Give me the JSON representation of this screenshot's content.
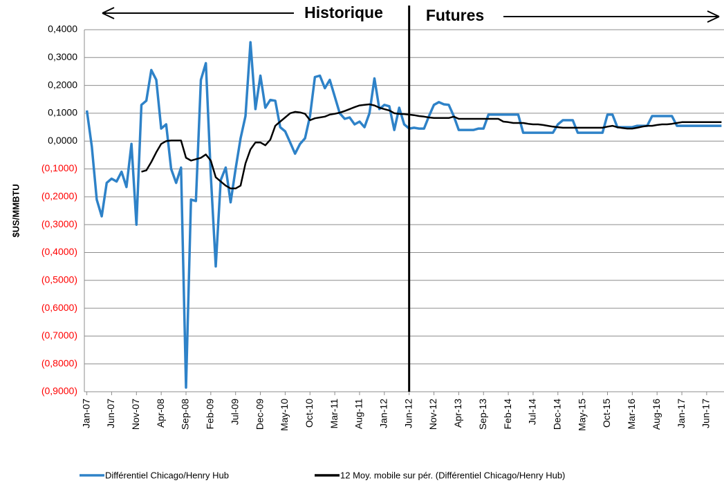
{
  "chart_data": {
    "type": "line",
    "y_label": "$US/MMBTU",
    "annotations": [
      "Historique",
      "Futures"
    ],
    "divider_category": "Jun-12",
    "negative_tick_color": "#ff0000",
    "grid": true,
    "legend": "bottom",
    "categories": [
      "Jan-07",
      null,
      null,
      null,
      null,
      "Jun-07",
      null,
      null,
      null,
      null,
      "Nov-07",
      null,
      null,
      null,
      null,
      "Apr-08",
      null,
      null,
      null,
      null,
      "Sep-08",
      null,
      null,
      null,
      null,
      "Feb-09",
      null,
      null,
      null,
      null,
      "Jul-09",
      null,
      null,
      null,
      null,
      "Dec-09",
      null,
      null,
      null,
      null,
      "May-10",
      null,
      null,
      null,
      null,
      "Oct-10",
      null,
      null,
      null,
      null,
      "Mar-11",
      null,
      null,
      null,
      null,
      "Aug-11",
      null,
      null,
      null,
      null,
      "Jan-12",
      null,
      null,
      null,
      null,
      "Jun-12",
      null,
      null,
      null,
      null,
      "Nov-12",
      null,
      null,
      null,
      null,
      "Apr-13",
      null,
      null,
      null,
      null,
      "Sep-13",
      null,
      null,
      null,
      null,
      "Feb-14",
      null,
      null,
      null,
      null,
      "Jul-14",
      null,
      null,
      null,
      null,
      "Dec-14",
      null,
      null,
      null,
      null,
      "May-15",
      null,
      null,
      null,
      null,
      "Oct-15",
      null,
      null,
      null,
      null,
      "Mar-16",
      null,
      null,
      null,
      null,
      "Aug-16",
      null,
      null,
      null,
      null,
      "Jan-17",
      null,
      null,
      null,
      null,
      "Jun-17",
      null,
      null,
      null
    ],
    "series": [
      {
        "name": "Différentiel Chicago/Henry Hub",
        "color": "#2e82c8",
        "width": 3.5,
        "values": [
          0.11,
          -0.02,
          -0.21,
          -0.27,
          -0.15,
          -0.135,
          -0.145,
          -0.11,
          -0.165,
          -0.01,
          -0.3,
          0.13,
          0.145,
          0.255,
          0.22,
          0.045,
          0.06,
          -0.1,
          -0.15,
          -0.095,
          -0.885,
          -0.21,
          -0.215,
          0.22,
          0.28,
          -0.12,
          -0.45,
          -0.14,
          -0.095,
          -0.22,
          -0.1,
          0.01,
          0.09,
          0.355,
          0.115,
          0.235,
          0.12,
          0.148,
          0.145,
          0.05,
          0.035,
          -0.005,
          -0.045,
          -0.01,
          0.01,
          0.09,
          0.23,
          0.235,
          0.19,
          0.22,
          0.16,
          0.1,
          0.08,
          0.085,
          0.06,
          0.07,
          0.05,
          0.1,
          0.225,
          0.115,
          0.13,
          0.125,
          0.04,
          0.12,
          0.06,
          0.045,
          0.048,
          0.045,
          0.045,
          0.09,
          0.13,
          0.14,
          0.132,
          0.13,
          0.09,
          0.04,
          0.04,
          0.04,
          0.04,
          0.045,
          0.045,
          0.095,
          0.095,
          0.095,
          0.095,
          0.095,
          0.095,
          0.095,
          0.03,
          0.03,
          0.03,
          0.03,
          0.03,
          0.03,
          0.03,
          0.06,
          0.075,
          0.075,
          0.075,
          0.03,
          0.03,
          0.03,
          0.03,
          0.03,
          0.03,
          0.095,
          0.095,
          0.05,
          0.05,
          0.05,
          0.05,
          0.055,
          0.055,
          0.055,
          0.09,
          0.09,
          0.09,
          0.09,
          0.09,
          0.055,
          0.055,
          0.055,
          0.055,
          0.055,
          0.055,
          0.055,
          0.055,
          0.055,
          0.055
        ]
      },
      {
        "name": "12 Moy. mobile sur pér. (Différentiel Chicago/Henry Hub)",
        "color": "#000000",
        "width": 2.5,
        "values": [
          null,
          null,
          null,
          null,
          null,
          null,
          null,
          null,
          null,
          null,
          null,
          -0.11,
          -0.105,
          -0.075,
          -0.04,
          -0.01,
          0,
          0.002,
          0.002,
          0.002,
          -0.06,
          -0.07,
          -0.065,
          -0.06,
          -0.048,
          -0.07,
          -0.13,
          -0.145,
          -0.16,
          -0.17,
          -0.17,
          -0.16,
          -0.08,
          -0.03,
          -0.005,
          -0.005,
          -0.015,
          0.005,
          0.055,
          0.07,
          0.085,
          0.1,
          0.105,
          0.103,
          0.098,
          0.075,
          0.082,
          0.085,
          0.088,
          0.095,
          0.098,
          0.102,
          0.108,
          0.115,
          0.122,
          0.128,
          0.13,
          0.132,
          0.128,
          0.12,
          0.115,
          0.11,
          0.1,
          0.098,
          0.097,
          0.095,
          0.093,
          0.09,
          0.088,
          0.085,
          0.083,
          0.083,
          0.083,
          0.083,
          0.088,
          0.08,
          0.08,
          0.08,
          0.08,
          0.08,
          0.08,
          0.08,
          0.08,
          0.08,
          0.07,
          0.068,
          0.065,
          0.065,
          0.065,
          0.062,
          0.06,
          0.06,
          0.058,
          0.055,
          0.052,
          0.05,
          0.048,
          0.048,
          0.048,
          0.048,
          0.048,
          0.048,
          0.048,
          0.048,
          0.048,
          0.052,
          0.055,
          0.05,
          0.047,
          0.045,
          0.045,
          0.048,
          0.052,
          0.055,
          0.055,
          0.058,
          0.06,
          0.06,
          0.062,
          0.065,
          0.068,
          0.068,
          0.068,
          0.068,
          0.068,
          0.068,
          0.068,
          0.068,
          0.068
        ]
      }
    ],
    "ylim": [
      -0.9,
      0.4
    ],
    "yticks": [
      {
        "value": 0.4,
        "label": "0,4000"
      },
      {
        "value": 0.3,
        "label": "0,3000"
      },
      {
        "value": 0.2,
        "label": "0,2000"
      },
      {
        "value": 0.1,
        "label": "0,1000"
      },
      {
        "value": 0,
        "label": "0,0000"
      },
      {
        "value": -0.1,
        "label": "(0,1000)"
      },
      {
        "value": -0.2,
        "label": "(0,2000)"
      },
      {
        "value": -0.3,
        "label": "(0,3000)"
      },
      {
        "value": -0.4,
        "label": "(0,4000)"
      },
      {
        "value": -0.5,
        "label": "(0,5000)"
      },
      {
        "value": -0.6,
        "label": "(0,6000)"
      },
      {
        "value": -0.7,
        "label": "(0,7000)"
      },
      {
        "value": -0.8,
        "label": "(0,8000)"
      },
      {
        "value": -0.9,
        "label": "(0,9000)"
      }
    ]
  }
}
